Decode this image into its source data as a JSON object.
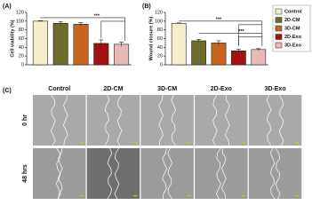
{
  "chart_data": [
    {
      "type": "bar",
      "panel_label": "(A)",
      "y_label": "Cell viability (%)",
      "values": [
        100,
        95,
        93,
        49,
        47
      ],
      "errors": [
        1,
        4,
        4,
        8,
        5
      ],
      "colors": [
        "#f6eecb",
        "#6e6c2c",
        "#c8641e",
        "#a31212",
        "#e9b9b7"
      ],
      "ylim": [
        0,
        120
      ],
      "yticks": [
        0,
        20,
        40,
        60,
        80,
        100,
        120
      ],
      "annotations": [
        "***"
      ]
    },
    {
      "type": "bar",
      "panel_label": "(B)",
      "y_label": "Wound closure (%)",
      "categories": [
        "Control",
        "2D-CM",
        "3D-CM",
        "2D-Exo",
        "3D-Exo"
      ],
      "values": [
        95,
        55,
        50,
        32,
        35
      ],
      "errors": [
        1,
        3,
        5,
        4,
        2
      ],
      "colors": [
        "#f6eecb",
        "#6e6c2c",
        "#c8641e",
        "#a31212",
        "#e9b9b7"
      ],
      "ylim": [
        0,
        120
      ],
      "yticks": [
        0,
        20,
        40,
        60,
        80,
        100,
        120
      ],
      "annotations": [
        "***",
        "***"
      ],
      "legend": "right"
    }
  ],
  "panel_c": {
    "label": "(C)",
    "columns": [
      "Control",
      "2D-CM",
      "3D-CM",
      "2D-Exo",
      "3D-Exo"
    ],
    "rows": [
      "0 hr",
      "48 hrs"
    ]
  }
}
